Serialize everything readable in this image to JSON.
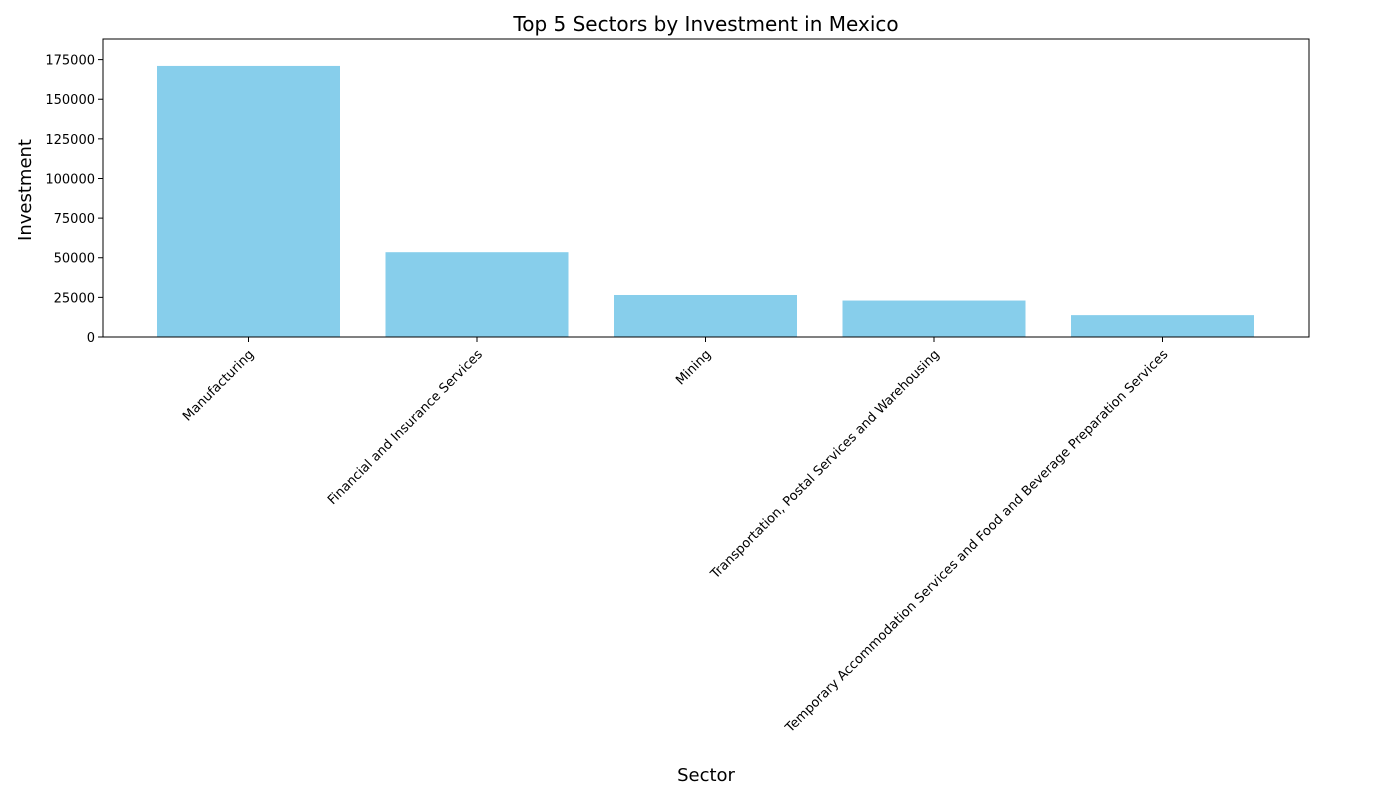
{
  "chart_data": {
    "type": "bar",
    "title": "Top 5 Sectors by Investment in Mexico",
    "xlabel": "Sector",
    "ylabel": "Investment",
    "categories": [
      "Manufacturing",
      "Financial and Insurance Services",
      "Mining",
      "Transportation, Postal Services and Warehousing",
      "Temporary Accommodation Services and Food and Beverage Preparation Services"
    ],
    "values": [
      171000,
      53500,
      26500,
      23000,
      13800
    ],
    "ylim": [
      0,
      188000
    ],
    "yticks": [
      0,
      25000,
      50000,
      75000,
      100000,
      125000,
      150000,
      175000
    ],
    "bar_color": "#87CEEB",
    "grid": false,
    "legend": "none"
  }
}
